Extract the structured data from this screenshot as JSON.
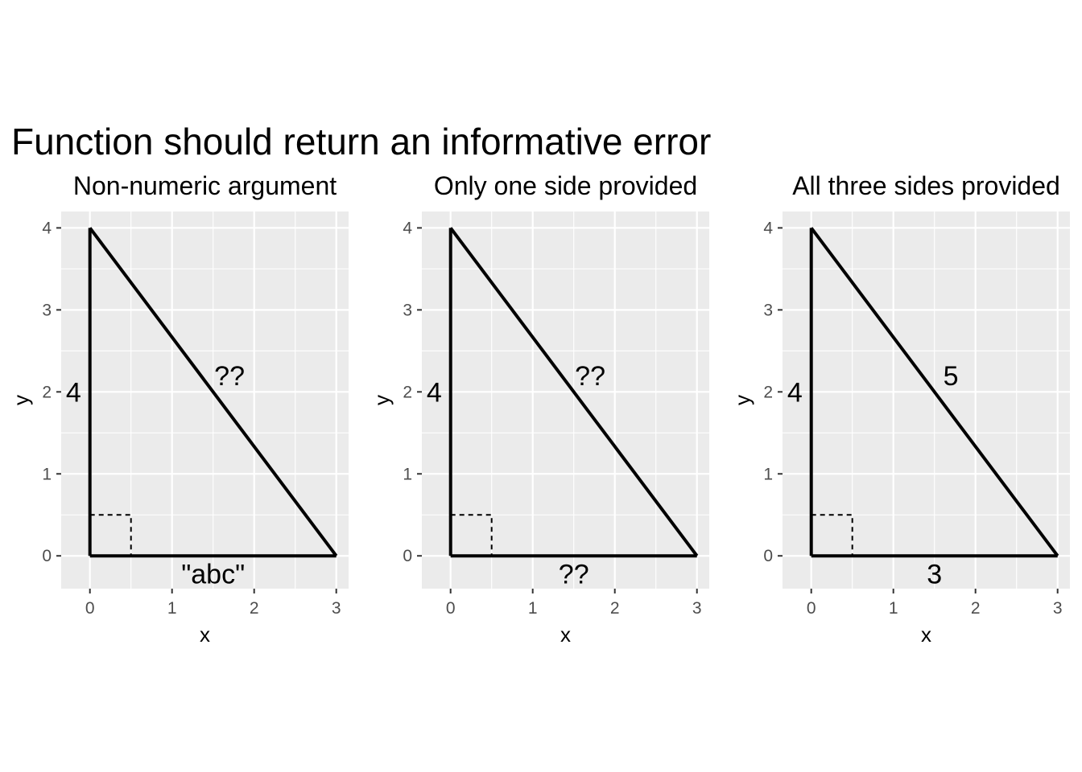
{
  "title": "Function should return an informative error",
  "chart_data": [
    {
      "type": "line",
      "title": "Non-numeric argument",
      "xlabel": "x",
      "ylabel": "y",
      "xlim": [
        -0.35,
        3.15
      ],
      "ylim": [
        -0.4,
        4.2
      ],
      "x_ticks": [
        0,
        1,
        2,
        3
      ],
      "y_ticks": [
        0,
        1,
        2,
        3,
        4
      ],
      "grid": true,
      "legend": "none",
      "triangle": [
        [
          0,
          0
        ],
        [
          3,
          0
        ],
        [
          0,
          4
        ]
      ],
      "right_angle_size": 0.5,
      "side_labels": [
        {
          "text": "4",
          "x": -0.2,
          "y": 2
        },
        {
          "text": "\"abc\"",
          "x": 1.5,
          "y": -0.22
        },
        {
          "text": "??",
          "x": 1.7,
          "y": 2.2
        }
      ]
    },
    {
      "type": "line",
      "title": "Only one side provided",
      "xlabel": "x",
      "ylabel": "y",
      "xlim": [
        -0.35,
        3.15
      ],
      "ylim": [
        -0.4,
        4.2
      ],
      "x_ticks": [
        0,
        1,
        2,
        3
      ],
      "y_ticks": [
        0,
        1,
        2,
        3,
        4
      ],
      "grid": true,
      "legend": "none",
      "triangle": [
        [
          0,
          0
        ],
        [
          3,
          0
        ],
        [
          0,
          4
        ]
      ],
      "right_angle_size": 0.5,
      "side_labels": [
        {
          "text": "4",
          "x": -0.2,
          "y": 2
        },
        {
          "text": "??",
          "x": 1.5,
          "y": -0.22
        },
        {
          "text": "??",
          "x": 1.7,
          "y": 2.2
        }
      ]
    },
    {
      "type": "line",
      "title": "All three sides provided",
      "xlabel": "x",
      "ylabel": "y",
      "xlim": [
        -0.35,
        3.15
      ],
      "ylim": [
        -0.4,
        4.2
      ],
      "x_ticks": [
        0,
        1,
        2,
        3
      ],
      "y_ticks": [
        0,
        1,
        2,
        3,
        4
      ],
      "grid": true,
      "legend": "none",
      "triangle": [
        [
          0,
          0
        ],
        [
          3,
          0
        ],
        [
          0,
          4
        ]
      ],
      "right_angle_size": 0.5,
      "side_labels": [
        {
          "text": "4",
          "x": -0.2,
          "y": 2
        },
        {
          "text": "3",
          "x": 1.5,
          "y": -0.22
        },
        {
          "text": "5",
          "x": 1.7,
          "y": 2.2
        }
      ]
    }
  ]
}
